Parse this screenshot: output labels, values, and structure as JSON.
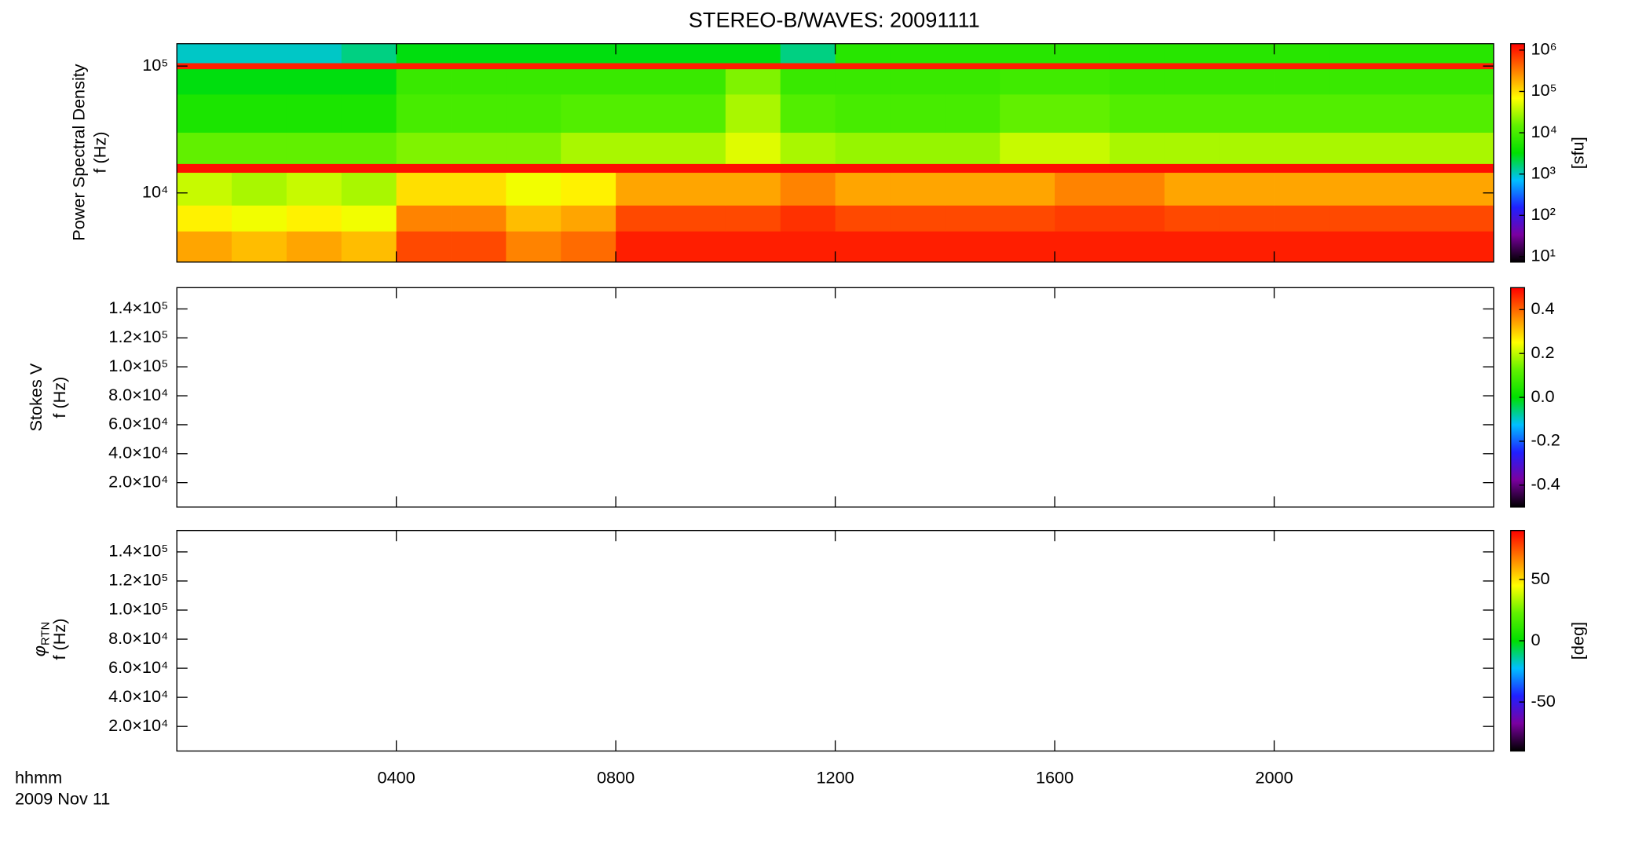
{
  "chart_data": [
    {
      "type": "heatmap",
      "title": "STEREO-B/WAVES: 20091111",
      "ylabel": [
        "Power Spectral Density",
        "f (Hz)"
      ],
      "ylog": true,
      "ylim": [
        2850,
        150000
      ],
      "yticks": [
        {
          "value": 10000,
          "label": "10⁴"
        },
        {
          "value": 100000,
          "label": "10⁵"
        }
      ],
      "xlim": [
        0,
        24
      ],
      "x": [
        0,
        1,
        2,
        3,
        4,
        5,
        6,
        7,
        8,
        9,
        10,
        11,
        12,
        13,
        14,
        15,
        16,
        17,
        18,
        19,
        20,
        21,
        22,
        23,
        24
      ],
      "y": [
        2850,
        5000,
        8000,
        14500,
        17000,
        30000,
        60000,
        95000,
        106000,
        150000
      ],
      "z": [
        [
          200000,
          150000,
          200000,
          150000,
          600000,
          600000,
          300000,
          400000,
          1000000,
          1000000,
          1000000,
          1000000,
          1000000,
          1000000,
          1000000,
          1000000,
          1000000,
          1000000,
          1000000,
          1000000,
          1000000,
          1000000,
          1000000,
          1000000
        ],
        [
          80000,
          60000,
          80000,
          60000,
          300000,
          300000,
          150000,
          200000,
          600000,
          600000,
          600000,
          800000,
          600000,
          600000,
          600000,
          600000,
          700000,
          700000,
          600000,
          600000,
          600000,
          600000,
          600000,
          600000
        ],
        [
          40000,
          30000,
          40000,
          30000,
          100000,
          100000,
          60000,
          80000,
          200000,
          200000,
          200000,
          300000,
          200000,
          200000,
          200000,
          200000,
          300000,
          300000,
          200000,
          200000,
          200000,
          200000,
          200000,
          200000
        ],
        [
          1200000,
          1200000,
          1200000,
          1200000,
          1200000,
          1200000,
          1200000,
          1200000,
          1200000,
          1200000,
          1200000,
          1200000,
          1200000,
          1200000,
          1200000,
          1200000,
          1200000,
          1200000,
          1200000,
          1200000,
          1200000,
          1200000,
          1200000,
          1200000
        ],
        [
          15000,
          15000,
          15000,
          15000,
          20000,
          20000,
          20000,
          30000,
          30000,
          30000,
          50000,
          30000,
          25000,
          25000,
          25000,
          40000,
          40000,
          30000,
          30000,
          30000,
          30000,
          30000,
          30000,
          30000
        ],
        [
          5000,
          5000,
          5000,
          5000,
          10000,
          10000,
          10000,
          12000,
          12000,
          12000,
          30000,
          12000,
          10000,
          10000,
          10000,
          15000,
          15000,
          12000,
          12000,
          12000,
          12000,
          12000,
          12000,
          12000
        ],
        [
          3000,
          3000,
          3000,
          3000,
          8000,
          8000,
          8000,
          8000,
          8000,
          8000,
          20000,
          8000,
          8000,
          8000,
          8000,
          9000,
          9000,
          8000,
          8000,
          8000,
          8000,
          8000,
          8000,
          8000
        ],
        [
          1000000,
          1000000,
          1000000,
          1000000,
          1000000,
          1000000,
          1000000,
          1000000,
          1000000,
          1000000,
          1000000,
          1000000,
          1000000,
          1000000,
          1000000,
          1000000,
          1000000,
          1000000,
          1000000,
          1000000,
          1000000,
          1000000,
          1000000,
          1000000
        ],
        [
          1000,
          1000,
          1000,
          1500,
          3000,
          3000,
          3000,
          3000,
          3000,
          3000,
          3000,
          1500,
          6000,
          6000,
          6000,
          6000,
          6000,
          6000,
          6000,
          6000,
          6000,
          6000,
          6000,
          6000
        ]
      ],
      "colorscale": [
        "#000000",
        "#7a00a0",
        "#2020ff",
        "#00c0ff",
        "#00e000",
        "#60f000",
        "#ffff00",
        "#ff8000",
        "#ff0000"
      ],
      "clog": true,
      "clim": [
        7.4,
        1430000
      ],
      "cticks": [
        {
          "value": 10,
          "label": "10¹"
        },
        {
          "value": 100,
          "label": "10²"
        },
        {
          "value": 1000,
          "label": "10³"
        },
        {
          "value": 10000,
          "label": "10⁴"
        },
        {
          "value": 100000,
          "label": "10⁵"
        },
        {
          "value": 1000000,
          "label": "10⁶"
        }
      ],
      "clabel": "[sfu]"
    },
    {
      "type": "heatmap",
      "ylabel": [
        "Stokes V",
        "f (Hz)"
      ],
      "ylim": [
        3100,
        154700
      ],
      "yticks": [
        {
          "value": 20000,
          "label": "2.0×10⁴"
        },
        {
          "value": 40000,
          "label": "4.0×10⁴"
        },
        {
          "value": 60000,
          "label": "6.0×10⁴"
        },
        {
          "value": 80000,
          "label": "8.0×10⁴"
        },
        {
          "value": 100000,
          "label": "1.0×10⁵"
        },
        {
          "value": 120000,
          "label": "1.2×10⁵"
        },
        {
          "value": 140000,
          "label": "1.4×10⁵"
        }
      ],
      "xlim": [
        0,
        24
      ],
      "colorscale": [
        "#000000",
        "#7a00a0",
        "#2020ff",
        "#00c0ff",
        "#00e000",
        "#60f000",
        "#ffff00",
        "#ff8000",
        "#ff0000"
      ],
      "clim": [
        -0.5,
        0.5
      ],
      "cticks": [
        -0.4,
        -0.2,
        {
          "value": 0,
          "label": "0.0"
        },
        0.2,
        0.4
      ]
    },
    {
      "type": "heatmap",
      "ylabel_symbol": "φ",
      "ylabel_subscript": "RTN",
      "ylabel": [
        "f (Hz)"
      ],
      "ylim": [
        3100,
        154700
      ],
      "yticks": [
        {
          "value": 20000,
          "label": "2.0×10⁴"
        },
        {
          "value": 40000,
          "label": "4.0×10⁴"
        },
        {
          "value": 60000,
          "label": "6.0×10⁴"
        },
        {
          "value": 80000,
          "label": "8.0×10⁴"
        },
        {
          "value": 100000,
          "label": "1.0×10⁵"
        },
        {
          "value": 120000,
          "label": "1.2×10⁵"
        },
        {
          "value": 140000,
          "label": "1.4×10⁵"
        }
      ],
      "xlim": [
        0,
        24
      ],
      "xticks": [
        {
          "value": 4,
          "label": "0400"
        },
        {
          "value": 8,
          "label": "0800"
        },
        {
          "value": 12,
          "label": "1200"
        },
        {
          "value": 16,
          "label": "1600"
        },
        {
          "value": 20,
          "label": "2000"
        }
      ],
      "xlabel": "hhmm",
      "xlabel_date": "2009 Nov 11",
      "colorscale": [
        "#000000",
        "#7a00a0",
        "#2020ff",
        "#00c0ff",
        "#00e000",
        "#60f000",
        "#ffff00",
        "#ff8000",
        "#ff0000"
      ],
      "clim": [
        -90,
        90
      ],
      "cticks": [
        -50,
        0,
        50
      ],
      "clabel": "[deg]"
    }
  ]
}
